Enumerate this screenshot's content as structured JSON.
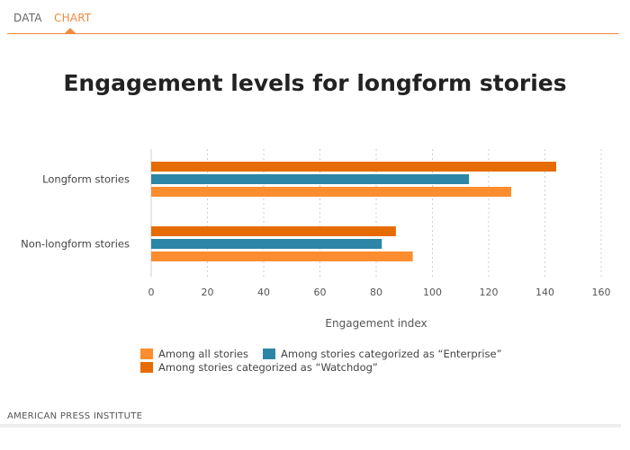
{
  "tabs": [
    {
      "label": "DATA",
      "active": false
    },
    {
      "label": "CHART",
      "active": true
    }
  ],
  "colors": {
    "accent": "#f08a3c",
    "all": "#fd8d2e",
    "enterprise": "#2e86a6",
    "watchdog": "#e66c00"
  },
  "chart_data": {
    "type": "bar",
    "orientation": "horizontal",
    "title": "Engagement levels for longform stories",
    "xlabel": "Engagement index",
    "ylabel": "",
    "xlim": [
      0,
      160
    ],
    "xticks": [
      0,
      20,
      40,
      60,
      80,
      100,
      120,
      140,
      160
    ],
    "grid": true,
    "legend_position": "bottom",
    "categories": [
      "Longform stories",
      "Non-longform stories"
    ],
    "series": [
      {
        "name": "Among stories categorized as “Watchdog”",
        "color": "#e66c00",
        "values": [
          144,
          87
        ]
      },
      {
        "name": "Among stories categorized as “Enterprise”",
        "color": "#2e86a6",
        "values": [
          113,
          82
        ]
      },
      {
        "name": "Among all stories",
        "color": "#fd8d2e",
        "values": [
          128,
          93
        ]
      }
    ],
    "legend": [
      {
        "name": "Among all stories",
        "color": "#fd8d2e"
      },
      {
        "name": "Among stories categorized as “Enterprise”",
        "color": "#2e86a6"
      },
      {
        "name": "Among stories categorized as “Watchdog”",
        "color": "#e66c00"
      }
    ]
  },
  "footer": {
    "source": "AMERICAN PRESS INSTITUTE"
  }
}
